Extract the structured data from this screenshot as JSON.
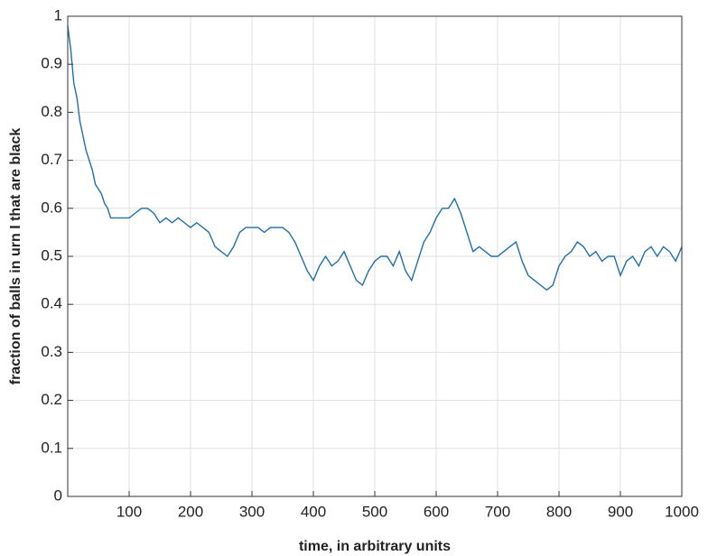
{
  "chart_data": {
    "type": "line",
    "xlabel": "time, in arbitrary units",
    "ylabel": "fraction of balls in urn I that are black",
    "x": [
      0,
      5,
      10,
      15,
      20,
      25,
      30,
      35,
      40,
      45,
      50,
      55,
      60,
      65,
      70,
      80,
      90,
      100,
      110,
      120,
      130,
      140,
      150,
      160,
      170,
      180,
      190,
      200,
      210,
      220,
      230,
      240,
      250,
      260,
      270,
      280,
      290,
      300,
      310,
      320,
      330,
      340,
      350,
      360,
      370,
      380,
      390,
      400,
      410,
      420,
      430,
      440,
      450,
      460,
      470,
      480,
      490,
      500,
      510,
      520,
      530,
      540,
      550,
      560,
      570,
      580,
      590,
      600,
      610,
      620,
      630,
      640,
      650,
      660,
      670,
      680,
      690,
      700,
      710,
      720,
      730,
      740,
      750,
      760,
      770,
      780,
      790,
      800,
      810,
      820,
      830,
      840,
      850,
      860,
      870,
      880,
      890,
      900,
      910,
      920,
      930,
      940,
      950,
      960,
      970,
      980,
      990,
      1000
    ],
    "series": [
      {
        "color": "#1f6fa8",
        "values": [
          0.98,
          0.93,
          0.86,
          0.83,
          0.78,
          0.75,
          0.72,
          0.7,
          0.68,
          0.65,
          0.64,
          0.63,
          0.61,
          0.6,
          0.58,
          0.58,
          0.58,
          0.58,
          0.59,
          0.6,
          0.6,
          0.59,
          0.57,
          0.58,
          0.57,
          0.58,
          0.57,
          0.56,
          0.57,
          0.56,
          0.55,
          0.52,
          0.51,
          0.5,
          0.52,
          0.55,
          0.56,
          0.56,
          0.56,
          0.55,
          0.56,
          0.56,
          0.56,
          0.55,
          0.53,
          0.5,
          0.47,
          0.45,
          0.48,
          0.5,
          0.48,
          0.49,
          0.51,
          0.48,
          0.45,
          0.44,
          0.47,
          0.49,
          0.5,
          0.5,
          0.48,
          0.51,
          0.47,
          0.45,
          0.49,
          0.53,
          0.55,
          0.58,
          0.6,
          0.6,
          0.62,
          0.59,
          0.55,
          0.51,
          0.52,
          0.51,
          0.5,
          0.5,
          0.51,
          0.52,
          0.53,
          0.49,
          0.46,
          0.45,
          0.44,
          0.43,
          0.44,
          0.48,
          0.5,
          0.51,
          0.53,
          0.52,
          0.5,
          0.51,
          0.49,
          0.5,
          0.5,
          0.46,
          0.49,
          0.5,
          0.48,
          0.51,
          0.52,
          0.5,
          0.52,
          0.51,
          0.49,
          0.52
        ]
      }
    ],
    "xlim": [
      0,
      1000
    ],
    "xticks": [
      100,
      200,
      300,
      400,
      500,
      600,
      700,
      800,
      900,
      1000
    ],
    "ylim": [
      0,
      1
    ],
    "yticks": [
      0,
      0.1,
      0.2,
      0.3,
      0.4,
      0.5,
      0.6,
      0.7,
      0.8,
      0.9,
      1
    ],
    "grid": true
  }
}
